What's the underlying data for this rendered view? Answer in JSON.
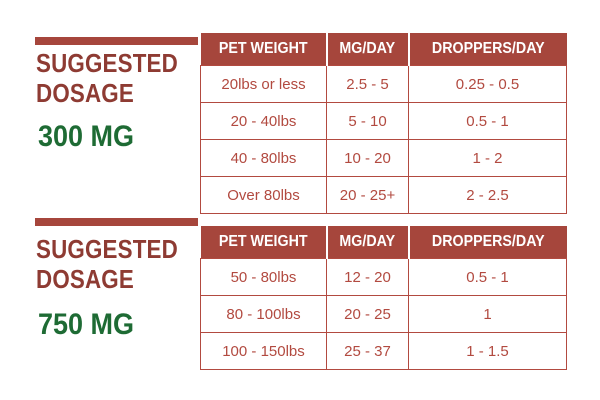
{
  "colors": {
    "title_red": "#8e3b33",
    "accent_red": "#a6463c",
    "amount_green": "#1e6b34",
    "cell_text": "#b24a40",
    "background": "#ffffff"
  },
  "columns": [
    "PET WEIGHT",
    "MG/DAY",
    "DROPPERS/DAY"
  ],
  "sections": [
    {
      "title_line1": "SUGGESTED",
      "title_line2": "DOSAGE",
      "amount": "300 MG",
      "rows": [
        [
          "20lbs or less",
          "2.5 - 5",
          "0.25 - 0.5"
        ],
        [
          "20 - 40lbs",
          "5 - 10",
          "0.5 - 1"
        ],
        [
          "40 - 80lbs",
          "10 - 20",
          "1 - 2"
        ],
        [
          "Over 80lbs",
          "20 - 25+",
          "2 - 2.5"
        ]
      ]
    },
    {
      "title_line1": "SUGGESTED",
      "title_line2": "DOSAGE",
      "amount": "750 MG",
      "rows": [
        [
          "50 - 80lbs",
          "12 - 20",
          "0.5 - 1"
        ],
        [
          "80 - 100lbs",
          "20 - 25",
          "1"
        ],
        [
          "100 - 150lbs",
          "25 - 37",
          "1 - 1.5"
        ]
      ]
    }
  ]
}
